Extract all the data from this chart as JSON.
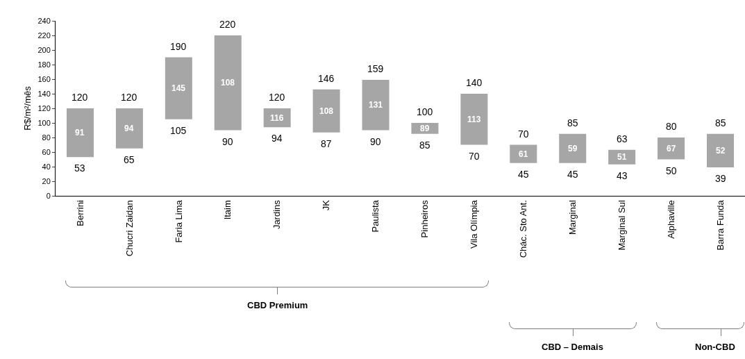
{
  "chart_data": {
    "type": "bar",
    "ylabel": "R$/m²/mês",
    "categories": [
      "Berrini",
      "Chucri Zaidan",
      "Faria Lima",
      "Itaim",
      "Jardins",
      "JK",
      "Paulista",
      "Pinheiros",
      "Vila Olímpia",
      "Chác. Sto Ant.",
      "Marginal",
      "Marginal Sul",
      "Alphaville",
      "Barra Funda"
    ],
    "series": [
      {
        "color": "#a6a6a6",
        "base": [
          53,
          65,
          105,
          90,
          94,
          87,
          90,
          85,
          70,
          45,
          45,
          43,
          50,
          39
        ],
        "values": [
          67,
          55,
          85,
          130,
          26,
          59,
          69,
          15,
          70,
          25,
          40,
          20,
          30,
          46
        ]
      }
    ],
    "ylim": [
      0,
      240
    ],
    "yticks": [
      0,
      20,
      40,
      60,
      80,
      100,
      120,
      140,
      160,
      180,
      200,
      220,
      240
    ],
    "grid": false,
    "annotations": [
      {
        "text": "120",
        "x": "Berrini",
        "y": 120
      },
      {
        "text": "53",
        "x": "Berrini",
        "y": 53
      },
      {
        "text": "120",
        "x": "Chucri Zaidan",
        "y": 120
      },
      {
        "text": "65",
        "x": "Chucri Zaidan",
        "y": 65
      },
      {
        "text": "190",
        "x": "Faria Lima",
        "y": 190
      },
      {
        "text": "105",
        "x": "Faria Lima",
        "y": 105
      },
      {
        "text": "220",
        "x": "Itaim",
        "y": 220
      },
      {
        "text": "90",
        "x": "Itaim",
        "y": 90
      },
      {
        "text": "120",
        "x": "Jardins",
        "y": 120
      },
      {
        "text": "94",
        "x": "Jardins",
        "y": 94
      },
      {
        "text": "146",
        "x": "JK",
        "y": 146
      },
      {
        "text": "87",
        "x": "JK",
        "y": 87
      },
      {
        "text": "159",
        "x": "Paulista",
        "y": 159
      },
      {
        "text": "90",
        "x": "Paulista",
        "y": 90
      },
      {
        "text": "100",
        "x": "Pinheiros",
        "y": 100
      },
      {
        "text": "85",
        "x": "Pinheiros",
        "y": 85
      },
      {
        "text": "140",
        "x": "Vila Olímpia",
        "y": 140
      },
      {
        "text": "70",
        "x": "Vila Olímpia",
        "y": 70
      },
      {
        "text": "70",
        "x": "Chác. Sto Ant.",
        "y": 70
      },
      {
        "text": "45",
        "x": "Chác. Sto Ant.",
        "y": 45
      },
      {
        "text": "85",
        "x": "Marginal",
        "y": 85
      },
      {
        "text": "45",
        "x": "Marginal",
        "y": 45
      },
      {
        "text": "63",
        "x": "Marginal Sul",
        "y": 63
      },
      {
        "text": "43",
        "x": "Marginal Sul",
        "y": 43
      },
      {
        "text": "80",
        "x": "Alphaville",
        "y": 80
      },
      {
        "text": "50",
        "x": "Alphaville",
        "y": 50
      },
      {
        "text": "85",
        "x": "Barra Funda",
        "y": 85
      },
      {
        "text": "39",
        "x": "Barra Funda",
        "y": 39
      },
      "91",
      "94",
      "145",
      "108",
      "116",
      "108",
      "131",
      "89",
      "113",
      "61",
      "59",
      "51",
      "67",
      "52",
      "CBD Premium",
      "CBD – Demais",
      "Non-CBD"
    ]
  }
}
